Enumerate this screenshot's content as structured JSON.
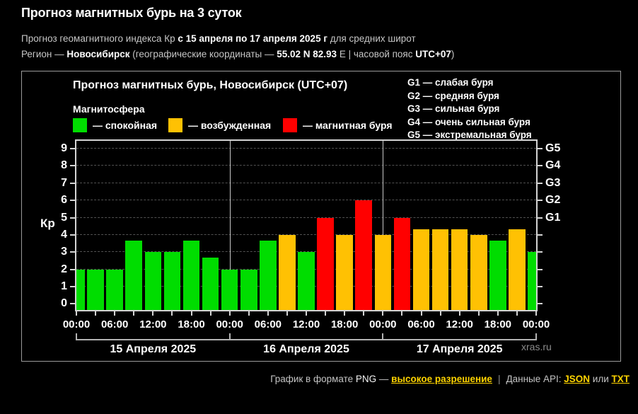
{
  "header": {
    "title": "Прогноз магнитных бурь на 3 суток",
    "subtitle": {
      "text1": "Прогноз геомагнитного индекса Кр ",
      "bold1": "с 15 апреля по 17 апреля 2025 г",
      "text2": " для средних широт"
    },
    "region": {
      "text1": "Регион — ",
      "bold1": "Новосибирск",
      "text2": " (географические координаты — ",
      "bold2": "55.02 N 82.93",
      "text3": " E | часовой пояс ",
      "bold3": "UTC+07",
      "text4": ")"
    }
  },
  "chart": {
    "title": "Прогноз магнитных бурь, Новосибирск (UTC+07)",
    "magnetosphere_label": "Магнитосфера",
    "legend": [
      {
        "state": "quiet",
        "label": "— спокойная",
        "color": "#00dd00"
      },
      {
        "state": "excited",
        "label": "— возбужденная",
        "color": "#ffc103"
      },
      {
        "state": "storm",
        "label": "— магнитная буря",
        "color": "#ff0000"
      }
    ],
    "g_scale_legend": [
      "G1 — слабая буря",
      "G2 — средняя буря",
      "G3 — сильная буря",
      "G4 — очень сильная буря",
      "G5 — экстремальная буря"
    ],
    "y_axis_label": "Кр",
    "watermark": "xras.ru"
  },
  "chart_data": {
    "type": "bar",
    "title": "Прогноз магнитных бурь, Новосибирск (UTC+07)",
    "ylabel": "Кр",
    "ylim": [
      0,
      9
    ],
    "grid": "horizontal dashed at Kp 1–9",
    "hours": [
      0,
      3,
      6,
      9,
      12,
      15,
      18,
      21,
      24,
      27,
      30,
      33,
      36,
      39,
      42,
      45,
      48,
      51,
      54,
      57,
      60,
      63,
      66,
      69,
      72
    ],
    "values": [
      2,
      2,
      2,
      3.67,
      3,
      3,
      3.67,
      2.67,
      2,
      2,
      3.67,
      4,
      3,
      5,
      4,
      6,
      4,
      5,
      4.33,
      4.33,
      4.33,
      4,
      3.67,
      4.33,
      3
    ],
    "states": [
      "quiet",
      "quiet",
      "quiet",
      "quiet",
      "quiet",
      "quiet",
      "quiet",
      "quiet",
      "quiet",
      "quiet",
      "quiet",
      "excited",
      "quiet",
      "storm",
      "excited",
      "storm",
      "excited",
      "storm",
      "excited",
      "excited",
      "excited",
      "excited",
      "quiet",
      "excited",
      "quiet"
    ],
    "colors": {
      "quiet": "#00dd00",
      "excited": "#ffc103",
      "storm": "#ff0000"
    },
    "y_ticks": [
      0,
      1,
      2,
      3,
      4,
      5,
      6,
      7,
      8,
      9
    ],
    "right_axis_labels": {
      "5": "G1",
      "6": "G2",
      "7": "G3",
      "8": "G4",
      "9": "G5"
    },
    "x_tick_labels": [
      "00:00",
      "06:00",
      "12:00",
      "18:00",
      "00:00",
      "06:00",
      "12:00",
      "18:00",
      "00:00",
      "06:00",
      "12:00",
      "18:00",
      "00:00"
    ],
    "day_labels": [
      "15 Апреля 2025",
      "16 Апреля 2025",
      "17 Апреля 2025"
    ],
    "day_separator_hours": [
      24,
      48
    ]
  },
  "footer": {
    "text1": "График в формате ",
    "png": "PNG",
    "dash": " — ",
    "link_hires": "высокое разрешение",
    "sep": "|",
    "text2": "Данные API: ",
    "link_json": "JSON",
    "text3": " или ",
    "link_txt": "TXT"
  }
}
